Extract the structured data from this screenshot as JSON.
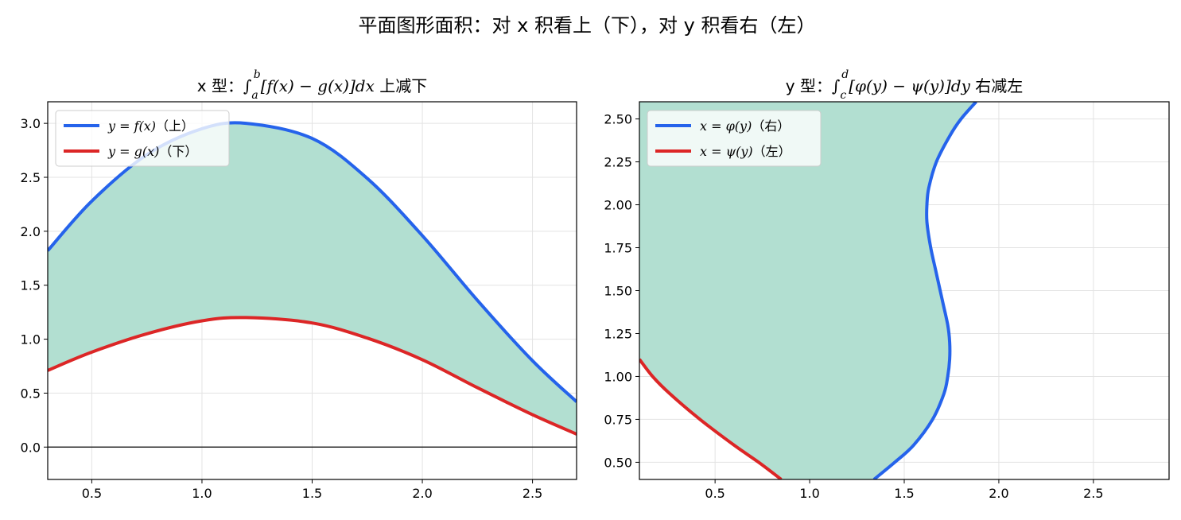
{
  "suptitle": "平面图形面积：对 x 积看上（下），对 y 积看右（左）",
  "colors": {
    "upper": "#2563eb",
    "lower": "#dc2626",
    "fill": "#b2dfd1",
    "axis": "#000000",
    "grid": "#e3e3e3"
  },
  "chart_data": [
    {
      "type": "area",
      "title": {
        "prefix": "x 型：",
        "integral": "∫",
        "lower_limit": "a",
        "upper_limit": "b",
        "expr": "[f(x) − g(x)]dx",
        "suffix": " 上减下"
      },
      "xlim": [
        0.3,
        2.7
      ],
      "ylim": [
        -0.3,
        3.2
      ],
      "xticks": [
        "0.5",
        "1.0",
        "1.5",
        "2.0",
        "2.5"
      ],
      "yticks": [
        "0.0",
        "0.5",
        "1.0",
        "1.5",
        "2.0",
        "2.5",
        "3.0"
      ],
      "grid": true,
      "zero_line": true,
      "legend_position": "top-left",
      "series": [
        {
          "name": "y = f(x)",
          "tag": "（上）",
          "color": "#2563eb",
          "x": [
            0.3,
            0.5,
            0.75,
            1.0,
            1.2,
            1.5,
            1.75,
            2.0,
            2.25,
            2.5,
            2.7
          ],
          "y": [
            1.82,
            2.28,
            2.71,
            2.95,
            3.0,
            2.86,
            2.49,
            1.96,
            1.36,
            0.8,
            0.42
          ]
        },
        {
          "name": "y = g(x)",
          "tag": "（下）",
          "color": "#dc2626",
          "x": [
            0.3,
            0.5,
            0.75,
            1.0,
            1.2,
            1.5,
            1.75,
            2.0,
            2.25,
            2.5,
            2.7
          ],
          "y": [
            0.71,
            0.88,
            1.05,
            1.17,
            1.2,
            1.15,
            1.01,
            0.81,
            0.55,
            0.3,
            0.12
          ]
        }
      ]
    },
    {
      "type": "area",
      "title": {
        "prefix": "y 型：",
        "integral": "∫",
        "lower_limit": "c",
        "upper_limit": "d",
        "expr": "[φ(y) − ψ(y)]dy",
        "suffix": " 右减左"
      },
      "xlim": [
        0.1,
        2.9
      ],
      "ylim": [
        0.4,
        2.6
      ],
      "xticks": [
        "0.5",
        "1.0",
        "1.5",
        "2.0",
        "2.5"
      ],
      "yticks": [
        "0.50",
        "0.75",
        "1.00",
        "1.25",
        "1.50",
        "1.75",
        "2.00",
        "2.25",
        "2.50"
      ],
      "grid": true,
      "zero_line": false,
      "legend_position": "top-left",
      "series": [
        {
          "name": "x = φ(y)",
          "tag": "（右）",
          "color": "#2563eb",
          "y": [
            0.4,
            0.5,
            0.6,
            0.75,
            0.9,
            1.0,
            1.1,
            1.2,
            1.3,
            1.45,
            1.6,
            1.75,
            1.9,
            2.0,
            2.1,
            2.25,
            2.4,
            2.5,
            2.6
          ],
          "x": [
            1.34,
            1.45,
            1.55,
            1.65,
            1.71,
            1.73,
            1.74,
            1.74,
            1.73,
            1.7,
            1.67,
            1.64,
            1.62,
            1.62,
            1.63,
            1.67,
            1.74,
            1.8,
            1.88
          ]
        },
        {
          "name": "x = ψ(y)",
          "tag": "（左）",
          "color": "#dc2626",
          "y": [
            0.4,
            0.5,
            0.6,
            0.75,
            0.9,
            1.0,
            1.1
          ],
          "x": [
            0.85,
            0.73,
            0.6,
            0.42,
            0.26,
            0.17,
            0.1
          ]
        }
      ]
    }
  ]
}
